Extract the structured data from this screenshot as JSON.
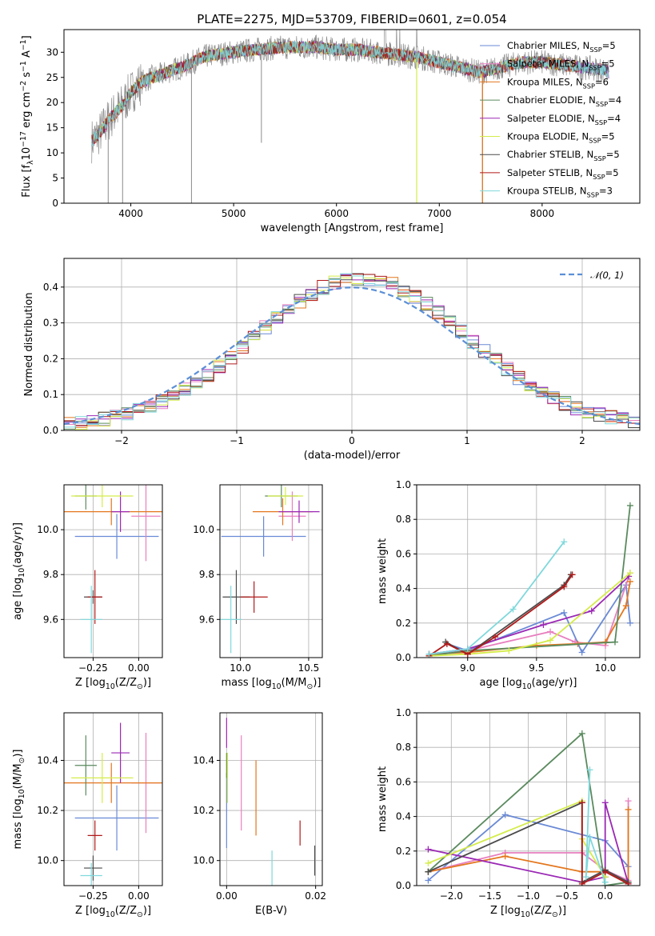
{
  "figure": {
    "title": "PLATE=2275, MJD=53709, FIBERID=0601, z=0.054"
  },
  "series": [
    {
      "label": "Chabrier MILES, N<sub>SSP</sub>=5",
      "color": "#6a8ad6"
    },
    {
      "label": "Salpeter MILES, N<sub>SSP</sub>=5",
      "color": "#e87fbf"
    },
    {
      "label": "Kroupa MILES, N<sub>SSP</sub>=6",
      "color": "#e3761c"
    },
    {
      "label": "Chabrier ELODIE, N<sub>SSP</sub>=4",
      "color": "#5a8a5e"
    },
    {
      "label": "Salpeter ELODIE, N<sub>SSP</sub>=4",
      "color": "#9b28b5"
    },
    {
      "label": "Kroupa ELODIE, N<sub>SSP</sub>=5",
      "color": "#d5ec4a"
    },
    {
      "label": "Chabrier STELIB, N<sub>SSP</sub>=5",
      "color": "#4a4a4a"
    },
    {
      "label": "Salpeter STELIB, N<sub>SSP</sub>=5",
      "color": "#b01a1a"
    },
    {
      "label": "Kroupa STELIB, N<sub>SSP</sub>=3",
      "color": "#7fd8dc"
    }
  ],
  "chart_data": [
    {
      "id": "spectrum",
      "type": "line",
      "xlabel": "wavelength [Angstrom, rest frame]",
      "ylabel": "Flux [f<sub>λ</sub>10<sup>−17</sup> erg cm<sup>−2</sup> s<sup>−1</sup> A<sup>−1</sup>]",
      "xlim": [
        3350,
        8950
      ],
      "ylim": [
        0,
        34.5
      ],
      "xticks": [
        4000,
        5000,
        6000,
        7000,
        8000
      ],
      "yticks": [
        0,
        5,
        10,
        15,
        20,
        25,
        30
      ],
      "grid": false,
      "legend": "top-right",
      "continuum": {
        "x": [
          3650,
          3700,
          3800,
          3900,
          4000,
          4100,
          4200,
          4300,
          4400,
          4500,
          4600,
          4700,
          4800,
          5000,
          5200,
          5500,
          5800,
          6000,
          6200,
          6400,
          6600,
          6800,
          7000,
          7200,
          7400,
          7600,
          7800,
          8000,
          8200,
          8400,
          8600,
          8650
        ],
        "y": [
          13,
          14,
          17,
          19,
          22,
          24,
          25,
          25.5,
          26.5,
          27,
          28,
          29,
          29.5,
          30,
          30.5,
          31,
          31,
          30.5,
          30.5,
          30,
          29.5,
          29,
          28,
          27,
          26,
          27,
          28,
          28,
          27.5,
          27,
          26.5,
          26
        ]
      },
      "dips": [
        {
          "x": 3780,
          "y": 0
        },
        {
          "x": 3920,
          "y": 0
        },
        {
          "x": 4590,
          "y": 0
        },
        {
          "x": 5270,
          "y": 12
        },
        {
          "x": 6780,
          "y": 0
        },
        {
          "x": 7420,
          "y": 0
        }
      ]
    },
    {
      "id": "residuals",
      "type": "histogram",
      "xlabel": "(data-model)/error",
      "ylabel": "Normed distribution",
      "xlim": [
        -2.5,
        2.5
      ],
      "ylim": [
        0,
        0.48
      ],
      "xticks": [
        -2,
        -1,
        0,
        1,
        2
      ],
      "yticks": [
        0.0,
        0.1,
        0.2,
        0.3,
        0.4
      ],
      "grid": true,
      "legend": "top-right",
      "reference_curve": {
        "label": "𝒩(0, 1)",
        "mean": 0,
        "std": 1,
        "color": "#5b8fd6"
      },
      "bin_width": 0.1
    },
    {
      "id": "age-vs-Z",
      "type": "errorbar",
      "xlabel": "Z [log<sub>10</sub>(Z/Z<sub>⊙</sub>)]",
      "ylabel": "age  [log<sub>10</sub>(age/yr)]",
      "xlim": [
        -0.41,
        0.13
      ],
      "ylim": [
        9.43,
        10.2
      ],
      "xticks": [
        -0.25,
        0.0
      ],
      "xticklabels": [
        "−0.25",
        "0.00"
      ],
      "yticks": [
        9.6,
        9.8,
        10.0
      ],
      "grid": true,
      "points": [
        {
          "s": 0,
          "x": -0.12,
          "y": 9.97,
          "xe": 0.23,
          "ye": 0.1
        },
        {
          "s": 1,
          "x": 0.04,
          "y": 10.06,
          "xe": 0.08,
          "ye": 0.2
        },
        {
          "s": 2,
          "x": -0.15,
          "y": 10.08,
          "xe": 0.28,
          "ye": 0.06
        },
        {
          "s": 3,
          "x": -0.29,
          "y": 10.15,
          "xe": 0.06,
          "ye": 0.06
        },
        {
          "s": 4,
          "x": -0.1,
          "y": 10.08,
          "xe": 0.05,
          "ye": 0.09
        },
        {
          "s": 5,
          "x": -0.2,
          "y": 10.15,
          "xe": 0.17,
          "ye": 0.05
        },
        {
          "s": 6,
          "x": -0.25,
          "y": 9.7,
          "xe": 0.05,
          "ye": 0.03
        },
        {
          "s": 7,
          "x": -0.24,
          "y": 9.7,
          "xe": 0.04,
          "ye": 0.12
        },
        {
          "s": 8,
          "x": -0.26,
          "y": 9.6,
          "xe": 0.06,
          "ye": 0.15
        }
      ]
    },
    {
      "id": "age-vs-mass",
      "type": "errorbar",
      "xlabel": "mass [log<sub>10</sub>(M/M<sub>⊙</sub>)]",
      "ylabel": "",
      "xlim": [
        9.85,
        10.6
      ],
      "ylim": [
        9.43,
        10.2
      ],
      "xticks": [
        10.0,
        10.5
      ],
      "yticks": [
        9.6,
        9.8,
        10.0
      ],
      "grid": true,
      "points": [
        {
          "s": 0,
          "x": 10.17,
          "y": 9.97,
          "xe": 0.31,
          "ye": 0.09
        },
        {
          "s": 1,
          "x": 10.38,
          "y": 10.06,
          "xe": 0.1,
          "ye": 0.11
        },
        {
          "s": 2,
          "x": 10.31,
          "y": 10.08,
          "xe": 0.22,
          "ye": 0.06
        },
        {
          "s": 3,
          "x": 10.3,
          "y": 10.15,
          "xe": 0.12,
          "ye": 0.05
        },
        {
          "s": 4,
          "x": 10.43,
          "y": 10.08,
          "xe": 0.15,
          "ye": 0.05
        },
        {
          "s": 5,
          "x": 10.33,
          "y": 10.15,
          "xe": 0.13,
          "ye": 0.04
        },
        {
          "s": 6,
          "x": 9.97,
          "y": 9.7,
          "xe": 0.1,
          "ye": 0.12
        },
        {
          "s": 7,
          "x": 10.1,
          "y": 9.7,
          "xe": 0.1,
          "ye": 0.07
        },
        {
          "s": 8,
          "x": 9.93,
          "y": 9.6,
          "xe": 0.08,
          "ye": 0.15
        }
      ]
    },
    {
      "id": "weights-vs-age",
      "type": "line",
      "xlabel": "age  [log<sub>10</sub>(age/yr)]",
      "ylabel": "mass weight",
      "xlim": [
        8.63,
        10.25
      ],
      "ylim": [
        0,
        1.0
      ],
      "xticks": [
        9.0,
        9.5,
        10.0
      ],
      "yticks": [
        0.0,
        0.2,
        0.4,
        0.6,
        0.8,
        1.0
      ],
      "grid": true,
      "series": [
        {
          "s": 0,
          "x": [
            8.85,
            9.0,
            9.7,
            9.83,
            10.15,
            10.18
          ],
          "y": [
            0.08,
            0.04,
            0.26,
            0.03,
            0.42,
            0.2
          ]
        },
        {
          "s": 1,
          "x": [
            8.72,
            9.0,
            9.6,
            9.78,
            10.0,
            10.18
          ],
          "y": [
            0.02,
            0.04,
            0.15,
            0.09,
            0.07,
            0.49
          ]
        },
        {
          "s": 2,
          "x": [
            8.72,
            9.0,
            9.5,
            9.8,
            10.0,
            10.15,
            10.18
          ],
          "y": [
            0.02,
            0.03,
            0.07,
            0.08,
            0.09,
            0.3,
            0.44
          ]
        },
        {
          "s": 3,
          "x": [
            8.72,
            9.0,
            10.07,
            10.18
          ],
          "y": [
            0.01,
            0.04,
            0.09,
            0.88
          ]
        },
        {
          "s": 4,
          "x": [
            8.72,
            9.0,
            9.55,
            9.9,
            10.17
          ],
          "y": [
            0.02,
            0.05,
            0.19,
            0.27,
            0.47
          ]
        },
        {
          "s": 5,
          "x": [
            8.72,
            9.0,
            9.3,
            9.6,
            10.18
          ],
          "y": [
            0.01,
            0.02,
            0.04,
            0.1,
            0.49
          ]
        },
        {
          "s": 6,
          "x": [
            8.84,
            9.0,
            9.7,
            9.75
          ],
          "y": [
            0.09,
            0.02,
            0.42,
            0.48
          ]
        },
        {
          "s": 7,
          "x": [
            8.72,
            8.85,
            9.0,
            9.2,
            9.7,
            9.76
          ],
          "y": [
            0.01,
            0.08,
            0.02,
            0.12,
            0.41,
            0.48
          ]
        },
        {
          "s": 8,
          "x": [
            8.72,
            9.0,
            9.33,
            9.7
          ],
          "y": [
            0.02,
            0.05,
            0.28,
            0.67
          ]
        }
      ]
    },
    {
      "id": "mass-vs-Z",
      "type": "errorbar",
      "xlabel": "Z [log<sub>10</sub>(Z/Z<sub>⊙</sub>)]",
      "ylabel": "mass [log<sub>10</sub>(M/M<sub>⊙</sub>)]",
      "xlim": [
        -0.41,
        0.13
      ],
      "ylim": [
        9.9,
        10.59
      ],
      "xticks": [
        -0.25,
        0.0
      ],
      "xticklabels": [
        "−0.25",
        "0.00"
      ],
      "yticks": [
        10.0,
        10.2,
        10.4
      ],
      "grid": true,
      "points": [
        {
          "s": 0,
          "x": -0.12,
          "y": 10.17,
          "xe": 0.23,
          "ye": 0.13
        },
        {
          "s": 1,
          "x": 0.04,
          "y": 10.31,
          "xe": 0.08,
          "ye": 0.2
        },
        {
          "s": 2,
          "x": -0.15,
          "y": 10.31,
          "xe": 0.28,
          "ye": 0.08
        },
        {
          "s": 3,
          "x": -0.29,
          "y": 10.38,
          "xe": 0.06,
          "ye": 0.12
        },
        {
          "s": 4,
          "x": -0.1,
          "y": 10.43,
          "xe": 0.05,
          "ye": 0.12
        },
        {
          "s": 5,
          "x": -0.2,
          "y": 10.33,
          "xe": 0.17,
          "ye": 0.1
        },
        {
          "s": 6,
          "x": -0.25,
          "y": 9.97,
          "xe": 0.05,
          "ye": 0.05
        },
        {
          "s": 7,
          "x": -0.24,
          "y": 10.1,
          "xe": 0.04,
          "ye": 0.06
        },
        {
          "s": 8,
          "x": -0.26,
          "y": 9.94,
          "xe": 0.06,
          "ye": 0.05
        }
      ]
    },
    {
      "id": "mass-vs-EBV",
      "type": "errorbar",
      "xlabel": "E(B-V)",
      "ylabel": "",
      "xlim": [
        -0.0015,
        0.0215
      ],
      "ylim": [
        9.9,
        10.59
      ],
      "xticks": [
        0.0,
        0.02
      ],
      "xticklabels": [
        "0.00",
        "0.02"
      ],
      "yticks": [
        10.0,
        10.2,
        10.4
      ],
      "grid": true,
      "points": [
        {
          "s": 0,
          "x": 0.0,
          "y": 10.2,
          "xe": 0,
          "ye": 0.15
        },
        {
          "s": 1,
          "x": 0.0033,
          "y": 10.31,
          "xe": 0,
          "ye": 0.19
        },
        {
          "s": 2,
          "x": 0.0066,
          "y": 10.25,
          "xe": 0,
          "ye": 0.15
        },
        {
          "s": 3,
          "x": 0.0,
          "y": 10.38,
          "xe": 0,
          "ye": 0.05
        },
        {
          "s": 4,
          "x": 0.0,
          "y": 10.51,
          "xe": 0,
          "ye": 0.06
        },
        {
          "s": 5,
          "x": 0.0002,
          "y": 10.33,
          "xe": 0,
          "ye": 0.1
        },
        {
          "s": 6,
          "x": 0.0198,
          "y": 10.0,
          "xe": 0,
          "ye": 0.06
        },
        {
          "s": 7,
          "x": 0.0165,
          "y": 10.11,
          "xe": 0,
          "ye": 0.05
        },
        {
          "s": 8,
          "x": 0.0102,
          "y": 9.97,
          "xe": 0,
          "ye": 0.07
        }
      ]
    },
    {
      "id": "weights-vs-Z",
      "type": "line",
      "xlabel": "Z [log<sub>10</sub>(Z/Z<sub>⊙</sub>)]",
      "ylabel": "mass weight",
      "xlim": [
        -2.45,
        0.45
      ],
      "ylim": [
        0,
        1.0
      ],
      "xticks": [
        -2.0,
        -1.5,
        -1.0,
        -0.5,
        0.0
      ],
      "xticklabels": [
        "−2.0",
        "−1.5",
        "−1.0",
        "−0.5",
        "0.0"
      ],
      "yticks": [
        0.0,
        0.2,
        0.4,
        0.6,
        0.8,
        1.0
      ],
      "grid": true,
      "series": [
        {
          "s": 0,
          "x": [
            -2.3,
            -1.3,
            0.0,
            0.3,
            0.3
          ],
          "y": [
            0.03,
            0.41,
            0.26,
            0.11,
            0.02
          ]
        },
        {
          "s": 1,
          "x": [
            -2.3,
            -1.3,
            -0.3,
            0.0,
            0.3,
            0.3
          ],
          "y": [
            0.08,
            0.19,
            0.19,
            0.09,
            0.03,
            0.49
          ]
        },
        {
          "s": 2,
          "x": [
            -2.3,
            -1.3,
            -0.3,
            0.0,
            0.3,
            0.3
          ],
          "y": [
            0.08,
            0.17,
            0.08,
            0.08,
            0.02,
            0.44
          ]
        },
        {
          "s": 3,
          "x": [
            -2.3,
            -0.3,
            0.0,
            0.3
          ],
          "y": [
            0.08,
            0.88,
            0.0,
            0.02
          ]
        },
        {
          "s": 4,
          "x": [
            -2.3,
            -0.3,
            0.0,
            0.0,
            0.3
          ],
          "y": [
            0.21,
            0.02,
            0.05,
            0.48,
            0.01
          ]
        },
        {
          "s": 5,
          "x": [
            -2.3,
            -0.3,
            -0.3,
            0.0
          ],
          "y": [
            0.13,
            0.49,
            0.27,
            0.05
          ]
        },
        {
          "s": 6,
          "x": [
            -2.3,
            -0.3,
            -0.3,
            0.0,
            0.3
          ],
          "y": [
            0.08,
            0.48,
            0.02,
            0.09,
            0.02
          ]
        },
        {
          "s": 7,
          "x": [
            -0.3,
            -0.3,
            0.0,
            0.3
          ],
          "y": [
            0.48,
            0.01,
            0.08,
            0.01
          ]
        },
        {
          "s": 8,
          "x": [
            -0.2,
            -0.25,
            -0.2,
            0.0
          ],
          "y": [
            0.67,
            0.05,
            0.28,
            0.02
          ]
        }
      ]
    }
  ]
}
